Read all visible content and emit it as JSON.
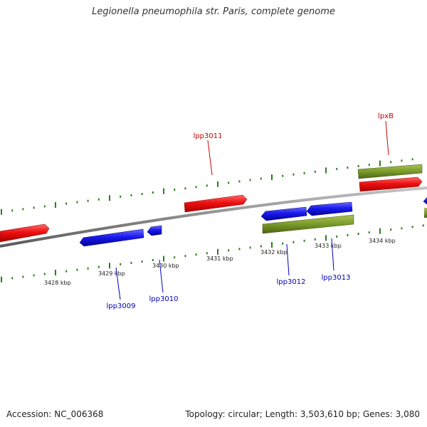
{
  "title": "Legionella pneumophila str. Paris, complete genome",
  "footer": {
    "accession": "Accession: NC_006368",
    "stats": "Topology: circular; Length: 3,503,610 bp; Genes: 3,080"
  },
  "colors": {
    "backbone": "#8a8a8a",
    "tick": "#2e7d1e",
    "forward_cds": "#ee1111",
    "reverse_cds": "#1a1aee",
    "gene_forward": "#7a9a2a",
    "gene_reverse": "#7a9a2a",
    "label_forward": "#cc0000",
    "label_reverse": "#0000bb"
  },
  "scale": {
    "labels": [
      "3428 kbp",
      "3429 kbp",
      "3430 kbp",
      "3431 kbp",
      "3432 kbp",
      "3433 kbp",
      "3434 kbp"
    ]
  },
  "labels": {
    "forward": [
      "lpp3011",
      "lpxB"
    ],
    "reverse": [
      "lpp3009",
      "lpp3010",
      "lpp3012",
      "lpp3013"
    ]
  }
}
